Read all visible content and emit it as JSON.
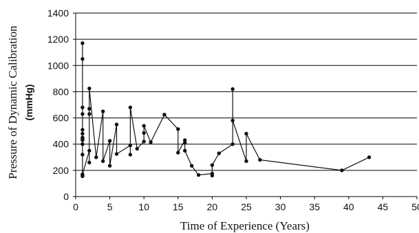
{
  "chart_data": {
    "type": "line",
    "xlabel": "Time of Experience (Years)",
    "ylabel": "Pressure of Dynamic Calibration",
    "ylabel_unit": "(mmHg)",
    "xlim": [
      0,
      50
    ],
    "ylim": [
      0,
      1400
    ],
    "xticks": [
      "0",
      "5",
      "10",
      "15",
      "20",
      "25",
      "30",
      "35",
      "40",
      "45",
      "50"
    ],
    "yticks": [
      "0",
      "200",
      "400",
      "600",
      "800",
      "1000",
      "1200",
      "1400"
    ],
    "grid": "horizontal",
    "colors": {
      "line": "#111111",
      "marker": "#111111",
      "grid": "#000000"
    },
    "series": [
      {
        "x": [
          1,
          1,
          1,
          1,
          1,
          1,
          1,
          1,
          1,
          1,
          1,
          1,
          1,
          1,
          2,
          2,
          2,
          2,
          2,
          3,
          4,
          4,
          5,
          5,
          6,
          6,
          8,
          8,
          8,
          9,
          10,
          10,
          10,
          11,
          13,
          15,
          15,
          16,
          16,
          16,
          17,
          18,
          20,
          20,
          20,
          21,
          23,
          23,
          23,
          25,
          25,
          27,
          39,
          43
        ],
        "y": [
          1170,
          1050,
          680,
          630,
          510,
          480,
          450,
          440,
          430,
          400,
          320,
          165,
          155,
          170,
          350,
          260,
          670,
          630,
          825,
          300,
          650,
          270,
          425,
          235,
          550,
          325,
          390,
          320,
          680,
          365,
          420,
          485,
          540,
          415,
          625,
          515,
          335,
          430,
          410,
          350,
          235,
          165,
          175,
          160,
          240,
          330,
          400,
          820,
          580,
          270,
          480,
          280,
          200,
          300
        ]
      }
    ]
  }
}
